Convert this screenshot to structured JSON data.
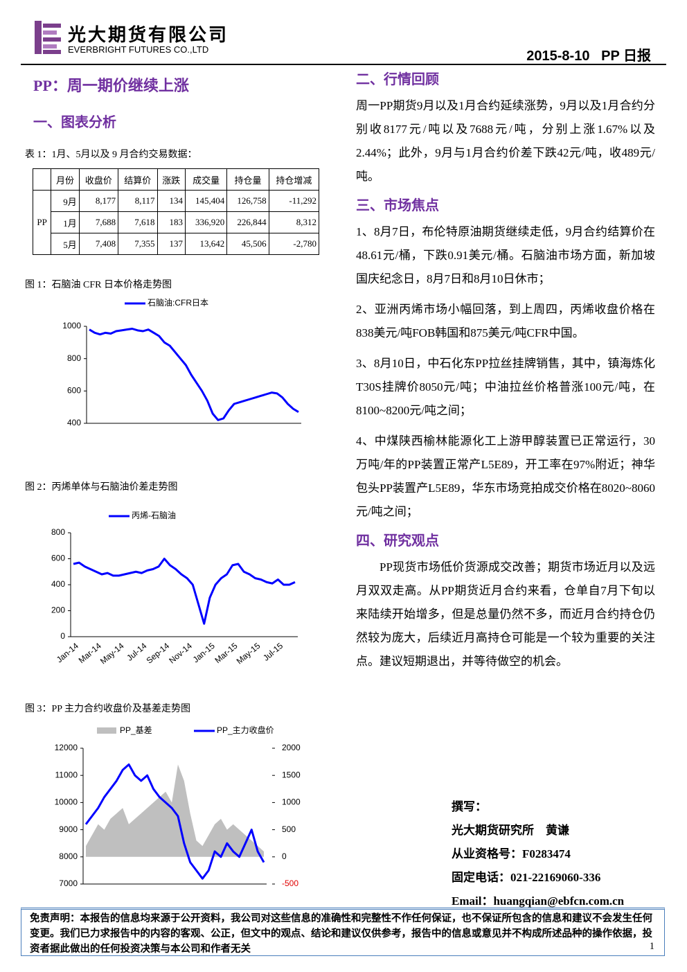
{
  "header": {
    "company_cn": "光大期货有限公司",
    "company_en": "EVERBRIGHT FUTURES CO.,LTD",
    "date": "2015-8-10",
    "report": "PP 日报"
  },
  "title": "PP：周一期价继续上涨",
  "section1": "一、图表分析",
  "table": {
    "caption": "表 1：1月、5月以及 9 月合约交易数据：",
    "columns": [
      "月份",
      "收盘价",
      "结算价",
      "涨跌",
      "成交量",
      "持仓量",
      "持仓增减"
    ],
    "row_group": "PP",
    "rows": [
      [
        "9月",
        "8,177",
        "8,117",
        "134",
        "145,404",
        "126,758",
        "-11,292"
      ],
      [
        "1月",
        "7,688",
        "7,618",
        "183",
        "336,920",
        "226,844",
        "8,312"
      ],
      [
        "5月",
        "7,408",
        "7,355",
        "137",
        "13,642",
        "45,506",
        "-2,780"
      ]
    ]
  },
  "chart_data": [
    {
      "type": "line",
      "caption": "图 1：石脑油 CFR 日本价格走势图",
      "series": [
        {
          "name": "石脑油:CFR日本",
          "color": "#0000ff",
          "values": [
            980,
            960,
            950,
            960,
            955,
            970,
            975,
            980,
            985,
            975,
            970,
            980,
            960,
            940,
            900,
            880,
            840,
            800,
            760,
            700,
            650,
            600,
            540,
            460,
            420,
            430,
            480,
            520,
            530,
            540,
            550,
            560,
            570,
            580,
            590,
            585,
            560,
            520,
            490,
            470
          ]
        }
      ],
      "ylim": [
        400,
        1000
      ],
      "yticks": [
        400,
        600,
        800,
        1000
      ]
    },
    {
      "type": "line",
      "caption": "图 2：丙烯单体与石脑油价差走势图",
      "x_labels": [
        "Jan-14",
        "Mar-14",
        "May-14",
        "Jul-14",
        "Sep-14",
        "Nov-14",
        "Jan-15",
        "Mar-15",
        "May-15",
        "Jul-15"
      ],
      "series": [
        {
          "name": "丙烯-石脑油",
          "color": "#0000ff",
          "values": [
            560,
            570,
            540,
            520,
            500,
            480,
            490,
            470,
            470,
            480,
            490,
            500,
            490,
            510,
            520,
            540,
            600,
            550,
            520,
            480,
            450,
            400,
            250,
            100,
            300,
            400,
            450,
            480,
            550,
            560,
            500,
            480,
            450,
            440,
            420,
            410,
            440,
            400,
            400,
            420
          ]
        }
      ],
      "ylim": [
        0,
        800
      ],
      "yticks": [
        0,
        200,
        400,
        600,
        800
      ]
    },
    {
      "type": "combo",
      "caption": "图 3：PP 主力合约收盘价及基差走势图",
      "series": [
        {
          "name": "PP_基差",
          "kind": "area",
          "axis": "y2",
          "color": "#bfbfbf",
          "values": [
            200,
            400,
            600,
            500,
            700,
            800,
            900,
            600,
            700,
            800,
            900,
            1000,
            1100,
            1200,
            1000,
            1700,
            1400,
            800,
            300,
            200,
            400,
            600,
            700,
            500,
            600,
            500,
            400,
            300,
            200,
            100
          ]
        },
        {
          "name": "PP_主力收盘价",
          "kind": "line",
          "color": "#0000ff",
          "values": [
            9200,
            9500,
            9800,
            10200,
            10500,
            10800,
            11200,
            11400,
            11000,
            10800,
            11000,
            10500,
            10200,
            10000,
            9800,
            9500,
            8500,
            7800,
            7500,
            7200,
            7500,
            8200,
            8000,
            8500,
            8200,
            8000,
            8500,
            9000,
            8200,
            7800
          ]
        }
      ],
      "ylim": [
        7000,
        12000
      ],
      "yticks": [
        7000,
        8000,
        9000,
        10000,
        11000,
        12000
      ],
      "y2lim": [
        -500,
        2000
      ],
      "y2ticks": [
        -500,
        0,
        500,
        1000,
        1500,
        2000
      ],
      "negative_tick_color": "#e00000"
    }
  ],
  "section2": {
    "heading": "二、行情回顾",
    "text": "周一PP期货9月以及1月合约延续涨势，9月以及1月合约分别收8177元/吨以及7688元/吨，分别上涨1.67%以及2.44%；此外，9月与1月合约价差下跌42元/吨，收489元/吨。"
  },
  "section3": {
    "heading": "三、市场焦点",
    "items": [
      "1、8月7日，布伦特原油期货继续走低，9月合约结算价在48.61元/桶，下跌0.91美元/桶。石脑油市场方面，新加坡国庆纪念日，8月7日和8月10日休市；",
      "2、亚洲丙烯市场小幅回落，到上周四，丙烯收盘价格在838美元/吨FOB韩国和875美元/吨CFR中国。",
      "3、8月10日，中石化东PP拉丝挂牌销售，其中，镇海炼化T30S挂牌价8050元/吨；中油拉丝价格普涨100元/吨，在8100~8200元/吨之间；",
      "4、中煤陕西榆林能源化工上游甲醇装置已正常运行，30万吨/年的PP装置正常产L5E89，开工率在97%附近；神华包头PP装置产L5E89，华东市场竞拍成交价格在8020~8060元/吨之间；"
    ]
  },
  "section4": {
    "heading": "四、研究观点",
    "text": "PP现货市场低价货源成交改善；期货市场近月以及远月双双走高。从PP期货近月合约来看，仓单自7月下旬以来陆续开始增多，但是总量仍然不多，而近月合约持仓仍然较为庞大，后续近月高持仓可能是一个较为重要的关注点。建议短期退出，并等待做空的机会。"
  },
  "author": {
    "label": "撰写：",
    "org": "光大期货研究所",
    "name": "黄谦",
    "license": "从业资格号：F0283474",
    "phone": "固定电话：021-22169060-336",
    "email": "Email：huangqian@ebfcn.com.cn"
  },
  "footer": {
    "disclaimer": "免责声明：本报告的信息均来源于公开资料，我公司对这些信息的准确性和完整性不作任何保证，也不保证所包含的信息和建议不会发生任何变更。我们已力求报告中的内容的客观、公正，但文中的观点、结论和建议仅供参考，报告中的信息或意见并不构成所述品种的操作依据，投资者据此做出的任何投资决策与本公司和作者无关",
    "page": "1"
  }
}
